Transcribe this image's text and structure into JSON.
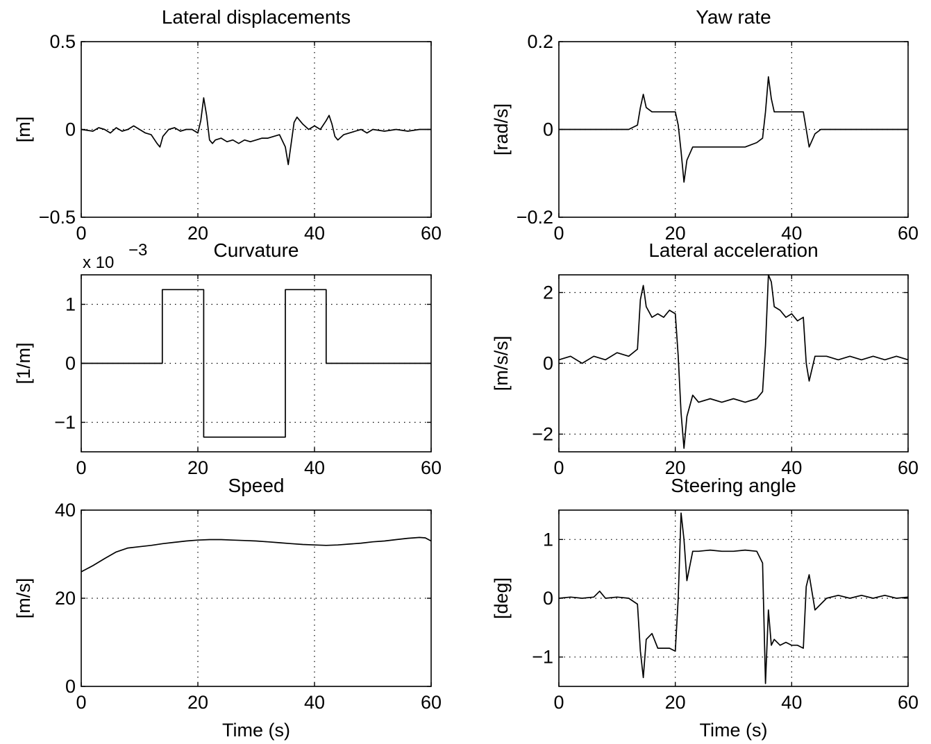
{
  "figure_title": "",
  "chart_data": [
    {
      "id": "lateral-displacements",
      "type": "line",
      "title": "Lateral displacements",
      "xlabel": "",
      "ylabel": "[m]",
      "xlim": [
        0,
        60
      ],
      "ylim": [
        -0.5,
        0.5
      ],
      "xticks": [
        0,
        20,
        40,
        60
      ],
      "xtick_labels": [
        "0",
        "20",
        "40",
        "60"
      ],
      "yticks": [
        -0.5,
        0,
        0.5
      ],
      "ytick_labels": [
        "−0.5",
        "0",
        "0.5"
      ],
      "grid": true,
      "x": [
        0,
        2,
        3,
        4,
        5,
        6,
        7,
        8,
        9,
        10,
        11,
        12,
        13,
        13.5,
        14,
        15,
        16,
        17,
        18,
        19,
        20,
        20.5,
        21,
        21.5,
        22,
        22.5,
        23,
        24,
        25,
        26,
        27,
        28,
        29,
        30,
        31,
        32,
        33,
        34,
        35,
        35.5,
        36,
        36.5,
        37,
        38,
        39,
        40,
        41,
        42,
        42.5,
        43,
        43.5,
        44,
        45,
        46,
        47,
        48,
        49,
        50,
        52,
        54,
        56,
        58,
        60
      ],
      "y": [
        0.0,
        -0.01,
        0.01,
        0.0,
        -0.02,
        0.01,
        -0.01,
        0.0,
        0.02,
        0.0,
        -0.02,
        -0.03,
        -0.08,
        -0.1,
        -0.04,
        0.0,
        0.01,
        -0.01,
        0.0,
        0.0,
        -0.02,
        0.05,
        0.18,
        0.08,
        -0.06,
        -0.08,
        -0.06,
        -0.05,
        -0.07,
        -0.06,
        -0.08,
        -0.06,
        -0.07,
        -0.06,
        -0.05,
        -0.05,
        -0.04,
        -0.03,
        -0.1,
        -0.2,
        -0.08,
        0.04,
        0.07,
        0.03,
        0.0,
        0.02,
        0.0,
        0.05,
        0.08,
        0.03,
        -0.04,
        -0.06,
        -0.03,
        -0.02,
        -0.01,
        0.0,
        -0.02,
        0.0,
        -0.01,
        0.0,
        -0.01,
        0.0,
        0.0
      ]
    },
    {
      "id": "yaw-rate",
      "type": "line",
      "title": "Yaw rate",
      "xlabel": "",
      "ylabel": "[rad/s]",
      "xlim": [
        0,
        60
      ],
      "ylim": [
        -0.2,
        0.2
      ],
      "xticks": [
        0,
        20,
        40,
        60
      ],
      "xtick_labels": [
        "0",
        "20",
        "40",
        "60"
      ],
      "yticks": [
        -0.2,
        0,
        0.2
      ],
      "ytick_labels": [
        "−0.2",
        "0",
        "0.2"
      ],
      "grid": true,
      "x": [
        0,
        2,
        4,
        6,
        8,
        10,
        12,
        13.5,
        14,
        14.5,
        15,
        16,
        17,
        18,
        19,
        20,
        20.5,
        21,
        21.5,
        22,
        23,
        24,
        26,
        28,
        30,
        32,
        34,
        35,
        35.5,
        36,
        36.5,
        37,
        38,
        39,
        40,
        41,
        42,
        42.5,
        43,
        44,
        45,
        46,
        48,
        50,
        52,
        54,
        56,
        58,
        60
      ],
      "y": [
        0.0,
        0.0,
        0.0,
        0.0,
        0.0,
        0.0,
        0.0,
        0.01,
        0.05,
        0.08,
        0.05,
        0.04,
        0.04,
        0.04,
        0.04,
        0.04,
        0.01,
        -0.05,
        -0.12,
        -0.07,
        -0.04,
        -0.04,
        -0.04,
        -0.04,
        -0.04,
        -0.04,
        -0.03,
        -0.02,
        0.04,
        0.12,
        0.07,
        0.04,
        0.04,
        0.04,
        0.04,
        0.04,
        0.04,
        0.0,
        -0.04,
        -0.01,
        0.0,
        0.0,
        0.0,
        0.0,
        0.0,
        0.0,
        0.0,
        0.0,
        0.0
      ]
    },
    {
      "id": "curvature",
      "type": "line",
      "title": "Curvature",
      "xlabel": "",
      "ylabel": "[1/m]",
      "exponent": "x 10",
      "exponent_power": "−3",
      "xlim": [
        0,
        60
      ],
      "ylim": [
        -1.5,
        1.5
      ],
      "xticks": [
        0,
        20,
        40,
        60
      ],
      "xtick_labels": [
        "0",
        "20",
        "40",
        "60"
      ],
      "yticks": [
        -1,
        0,
        1
      ],
      "ytick_labels": [
        "−1",
        "0",
        "1"
      ],
      "grid": true,
      "x": [
        0,
        13.9,
        13.9,
        21,
        21,
        35,
        35,
        42,
        42,
        60
      ],
      "y": [
        0,
        0,
        1.25,
        1.25,
        -1.25,
        -1.25,
        1.25,
        1.25,
        0,
        0
      ]
    },
    {
      "id": "lateral-acceleration",
      "type": "line",
      "title": "Lateral acceleration",
      "xlabel": "",
      "ylabel": "[m/s/s]",
      "xlim": [
        0,
        60
      ],
      "ylim": [
        -2.5,
        2.5
      ],
      "xticks": [
        0,
        20,
        40,
        60
      ],
      "xtick_labels": [
        "0",
        "20",
        "40",
        "60"
      ],
      "yticks": [
        -2,
        0,
        2
      ],
      "ytick_labels": [
        "−2",
        "0",
        "2"
      ],
      "grid": true,
      "x": [
        0,
        2,
        4,
        6,
        8,
        10,
        12,
        13.5,
        14,
        14.5,
        15,
        16,
        17,
        18,
        19,
        20,
        20.5,
        21,
        21.5,
        22,
        23,
        24,
        26,
        28,
        30,
        32,
        34,
        35,
        35.5,
        36,
        36.5,
        37,
        38,
        39,
        40,
        41,
        42,
        42.5,
        43,
        44,
        46,
        48,
        50,
        52,
        54,
        56,
        58,
        60
      ],
      "y": [
        0.1,
        0.2,
        0.0,
        0.2,
        0.1,
        0.3,
        0.2,
        0.4,
        1.8,
        2.2,
        1.6,
        1.3,
        1.4,
        1.3,
        1.5,
        1.4,
        0.2,
        -1.4,
        -2.4,
        -1.5,
        -0.9,
        -1.1,
        -1.0,
        -1.1,
        -1.0,
        -1.1,
        -1.0,
        -0.8,
        0.5,
        2.5,
        2.3,
        1.6,
        1.5,
        1.3,
        1.4,
        1.2,
        1.3,
        0.0,
        -0.5,
        0.2,
        0.2,
        0.1,
        0.2,
        0.1,
        0.2,
        0.1,
        0.2,
        0.1
      ]
    },
    {
      "id": "speed",
      "type": "line",
      "title": "Speed",
      "xlabel": "Time (s)",
      "ylabel": "[m/s]",
      "xlim": [
        0,
        60
      ],
      "ylim": [
        0,
        40
      ],
      "xticks": [
        0,
        20,
        40,
        60
      ],
      "xtick_labels": [
        "0",
        "20",
        "40",
        "60"
      ],
      "yticks": [
        0,
        20,
        40
      ],
      "ytick_labels": [
        "0",
        "20",
        "40"
      ],
      "grid": true,
      "x": [
        0,
        2,
        4,
        6,
        8,
        10,
        12,
        14,
        16,
        18,
        20,
        22,
        24,
        26,
        28,
        30,
        32,
        34,
        36,
        38,
        40,
        42,
        44,
        46,
        48,
        50,
        52,
        54,
        56,
        58,
        59,
        60
      ],
      "y": [
        26.0,
        27.4,
        29.0,
        30.5,
        31.4,
        31.7,
        32.0,
        32.4,
        32.7,
        33.0,
        33.2,
        33.3,
        33.3,
        33.2,
        33.1,
        33.0,
        32.8,
        32.6,
        32.4,
        32.2,
        32.1,
        32.0,
        32.1,
        32.3,
        32.5,
        32.8,
        33.0,
        33.3,
        33.6,
        33.8,
        33.7,
        33.0
      ]
    },
    {
      "id": "steering-angle",
      "type": "line",
      "title": "Steering angle",
      "xlabel": "Time (s)",
      "ylabel": "[deg]",
      "xlim": [
        0,
        60
      ],
      "ylim": [
        -1.5,
        1.5
      ],
      "xticks": [
        0,
        20,
        40,
        60
      ],
      "xtick_labels": [
        "0",
        "20",
        "40",
        "60"
      ],
      "yticks": [
        -1,
        0,
        1
      ],
      "ytick_labels": [
        "−1",
        "0",
        "1"
      ],
      "grid": true,
      "x": [
        0,
        2,
        4,
        6,
        7,
        8,
        10,
        12,
        13.5,
        14,
        14.5,
        15,
        16,
        17,
        18,
        19,
        20,
        20.5,
        21,
        21.5,
        22,
        23,
        24,
        26,
        28,
        30,
        32,
        34,
        35,
        35.5,
        36,
        36.5,
        37,
        38,
        39,
        40,
        41,
        42,
        42.5,
        43,
        44,
        46,
        48,
        50,
        52,
        54,
        56,
        58,
        60
      ],
      "y": [
        0.0,
        0.02,
        0.0,
        0.02,
        0.12,
        0.0,
        0.02,
        0.0,
        -0.1,
        -0.9,
        -1.35,
        -0.7,
        -0.6,
        -0.85,
        -0.85,
        -0.85,
        -0.9,
        0.0,
        1.45,
        1.0,
        0.3,
        0.8,
        0.8,
        0.82,
        0.8,
        0.8,
        0.82,
        0.8,
        0.6,
        -1.45,
        -0.2,
        -0.8,
        -0.7,
        -0.8,
        -0.75,
        -0.8,
        -0.8,
        -0.85,
        0.2,
        0.4,
        -0.2,
        0.0,
        0.05,
        0.0,
        0.05,
        0.0,
        0.05,
        0.0,
        0.02
      ]
    }
  ]
}
